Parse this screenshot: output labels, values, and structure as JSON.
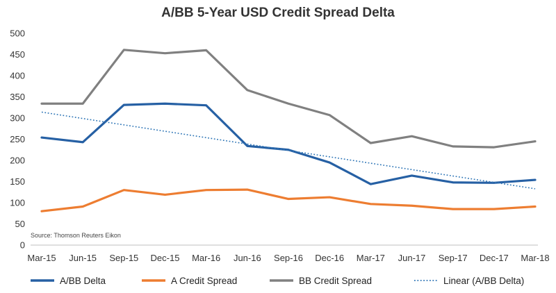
{
  "chart_data": {
    "type": "line",
    "title": "A/BB 5-Year USD Credit Spread Delta",
    "xlabel": "",
    "ylabel": "",
    "ylim": [
      0,
      500
    ],
    "yticks": [
      0,
      50,
      100,
      150,
      200,
      250,
      300,
      350,
      400,
      450,
      500
    ],
    "categories": [
      "Mar-15",
      "Jun-15",
      "Sep-15",
      "Dec-15",
      "Mar-16",
      "Jun-16",
      "Sep-16",
      "Dec-16",
      "Mar-17",
      "Jun-17",
      "Sep-17",
      "Dec-17",
      "Mar-18"
    ],
    "series": [
      {
        "name": "A/BB Delta",
        "color": "#2660a4",
        "values": [
          254,
          243,
          331,
          334,
          330,
          234,
          225,
          195,
          144,
          164,
          148,
          147,
          154
        ]
      },
      {
        "name": "A Credit Spread",
        "color": "#ed7d31",
        "values": [
          80,
          91,
          130,
          119,
          130,
          131,
          109,
          113,
          97,
          93,
          85,
          85,
          91
        ]
      },
      {
        "name": "BB Credit Spread",
        "color": "#808080",
        "values": [
          334,
          334,
          461,
          453,
          460,
          366,
          334,
          307,
          241,
          257,
          233,
          231,
          245
        ]
      }
    ],
    "trendline": {
      "name": "Linear (A/BB Delta)",
      "color": "#2e75b6",
      "start": 314,
      "end": 133
    },
    "source_note": "Source: Thomson Reuters Eikon",
    "grid": false,
    "legend_position": "bottom"
  }
}
